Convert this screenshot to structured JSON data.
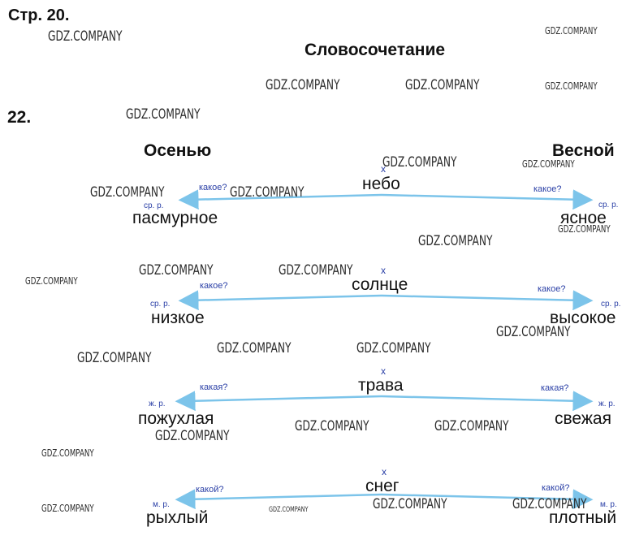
{
  "header": {
    "page": "Стр. 20.",
    "title": "Словосочетание",
    "task": "22."
  },
  "columns": {
    "left": "Осенью",
    "right": "Весной"
  },
  "rows": [
    {
      "noun": "небо",
      "mark": "x",
      "left_q": "какое?",
      "right_q": "какое?",
      "left_gram": "ср. р.",
      "right_gram": "ср. р.",
      "left_adj": "пасмурное",
      "right_adj": "ясное"
    },
    {
      "noun": "солнце",
      "mark": "x",
      "left_q": "какое?",
      "right_q": "какое?",
      "left_gram": "ср. р.",
      "right_gram": "ср. р.",
      "left_adj": "низкое",
      "right_adj": "высокое"
    },
    {
      "noun": "трава",
      "mark": "x",
      "left_q": "какая?",
      "right_q": "какая?",
      "left_gram": "ж. р.",
      "right_gram": "ж. р.",
      "left_adj": "пожухлая",
      "right_adj": "свежая"
    },
    {
      "noun": "снег",
      "mark": "x",
      "left_q": "какой?",
      "right_q": "какой?",
      "left_gram": "м. р.",
      "right_gram": "м. р.",
      "left_adj": "рыхлый",
      "right_adj": "плотный"
    }
  ],
  "watermark": "GDZ.COMPANY",
  "colors": {
    "arrow": "#7cc4ea",
    "annotation": "#2a3fa6",
    "text": "#111111"
  }
}
